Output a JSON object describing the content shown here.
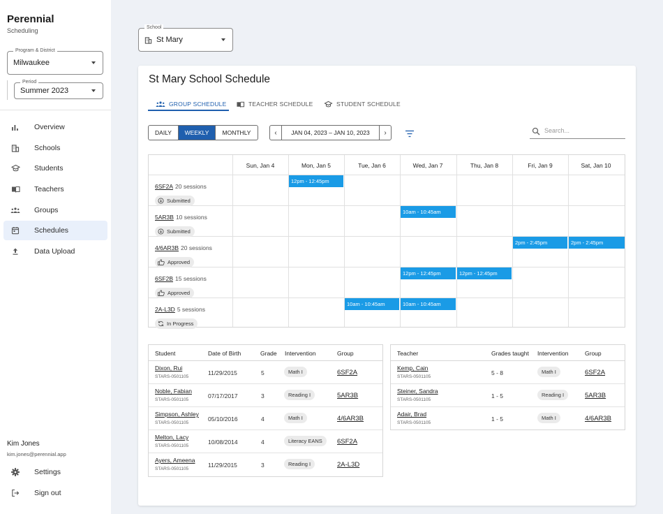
{
  "app": {
    "name": "Perennial",
    "subtitle": "Scheduling"
  },
  "filters": {
    "program": {
      "label": "Program & District",
      "value": "Milwaukee"
    },
    "period": {
      "label": "Period",
      "value": "Summer 2023"
    },
    "school": {
      "label": "School",
      "value": "St Mary"
    }
  },
  "nav": [
    {
      "label": "Overview",
      "icon": "bar-chart-icon"
    },
    {
      "label": "Schools",
      "icon": "building-icon"
    },
    {
      "label": "Students",
      "icon": "graduation-cap-icon"
    },
    {
      "label": "Teachers",
      "icon": "book-icon"
    },
    {
      "label": "Groups",
      "icon": "group-icon"
    },
    {
      "label": "Schedules",
      "icon": "calendar-icon",
      "active": true
    },
    {
      "label": "Data Upload",
      "icon": "upload-icon"
    }
  ],
  "user": {
    "name": "Kim Jones",
    "email": "kim.jones@perennial.app"
  },
  "footer_nav": {
    "settings": "Settings",
    "signout": "Sign out"
  },
  "page": {
    "title": "St Mary School Schedule"
  },
  "tabs": [
    {
      "label": "GROUP SCHEDULE",
      "active": true
    },
    {
      "label": "TEACHER SCHEDULE"
    },
    {
      "label": "STUDENT SCHEDULE"
    }
  ],
  "view": {
    "daily": "DAILY",
    "weekly": "WEEKLY",
    "monthly": "MONTHLY",
    "selected": "WEEKLY"
  },
  "date_range": "JAN 04, 2023 – JAN 10, 2023",
  "search": {
    "placeholder": "Search..."
  },
  "days": [
    "Sun, Jan 4",
    "Mon, Jan 5",
    "Tue, Jan 6",
    "Wed, Jan 7",
    "Thu, Jan 8",
    "Fri, Jan 9",
    "Sat, Jan 10"
  ],
  "groups": [
    {
      "code": "6SF2A",
      "sessions": "20 sessions",
      "status": "Submitted",
      "events": [
        {
          "day": 1,
          "time": "12pm - 12:45pm"
        }
      ]
    },
    {
      "code": "5AR3B",
      "sessions": "10 sessions",
      "status": "Submitted",
      "events": [
        {
          "day": 3,
          "time": "10am - 10:45am"
        }
      ]
    },
    {
      "code": "4/6AR3B",
      "sessions": "20 sessions",
      "status": "Approved",
      "events": [
        {
          "day": 5,
          "time": "2pm - 2:45pm"
        },
        {
          "day": 6,
          "time": "2pm - 2:45pm"
        }
      ]
    },
    {
      "code": "6SF2B",
      "sessions": "15 sessions",
      "status": "Approved",
      "events": [
        {
          "day": 3,
          "time": "12pm - 12:45pm"
        },
        {
          "day": 4,
          "time": "12pm - 12:45pm"
        }
      ]
    },
    {
      "code": "2A-L3D",
      "sessions": "5 sessions",
      "status": "In Progress",
      "events": [
        {
          "day": 2,
          "time": "10am - 10:45am"
        },
        {
          "day": 3,
          "time": "10am - 10:45am"
        }
      ]
    }
  ],
  "students": {
    "headers": [
      "Student",
      "Date of Birth",
      "Grade",
      "Intervention",
      "Group"
    ],
    "rows": [
      {
        "name": "Dixon, Rui",
        "id": "STARS-0501105",
        "dob": "11/29/2015",
        "grade": "5",
        "intervention": "Math I",
        "group": "6SF2A"
      },
      {
        "name": "Noble, Fabian",
        "id": "STARS-0501105",
        "dob": "07/17/2017",
        "grade": "3",
        "intervention": "Reading I",
        "group": "5AR3B"
      },
      {
        "name": "Simpson, Ashley",
        "id": "STARS-0501105",
        "dob": "05/10/2016",
        "grade": "4",
        "intervention": "Math I",
        "group": "4/6AR3B"
      },
      {
        "name": "Melton, Lacy",
        "id": "STARS-0501105",
        "dob": "10/08/2014",
        "grade": "4",
        "intervention": "Literacy EANS",
        "group": "6SF2A"
      },
      {
        "name": "Ayers, Ameena",
        "id": "STARS-0501105",
        "dob": "11/29/2015",
        "grade": "3",
        "intervention": "Reading I",
        "group": "2A-L3D"
      }
    ]
  },
  "teachers": {
    "headers": [
      "Teacher",
      "Grades taught",
      "Intervention",
      "Group"
    ],
    "rows": [
      {
        "name": "Kemp, Cain",
        "id": "STARS-0501105",
        "grades": "5 - 8",
        "intervention": "Math I",
        "group": "6SF2A"
      },
      {
        "name": "Steiner, Sandra",
        "id": "STARS-0501105",
        "grades": "1 - 5",
        "intervention": "Reading I",
        "group": "5AR3B"
      },
      {
        "name": "Adair, Brad",
        "id": "STARS-0501105",
        "grades": "1 - 5",
        "intervention": "Math I",
        "group": "4/6AR3B"
      }
    ]
  },
  "colors": {
    "accent": "#1f5fae",
    "event": "#1a9be6",
    "active_nav": "#e9f0fb"
  }
}
